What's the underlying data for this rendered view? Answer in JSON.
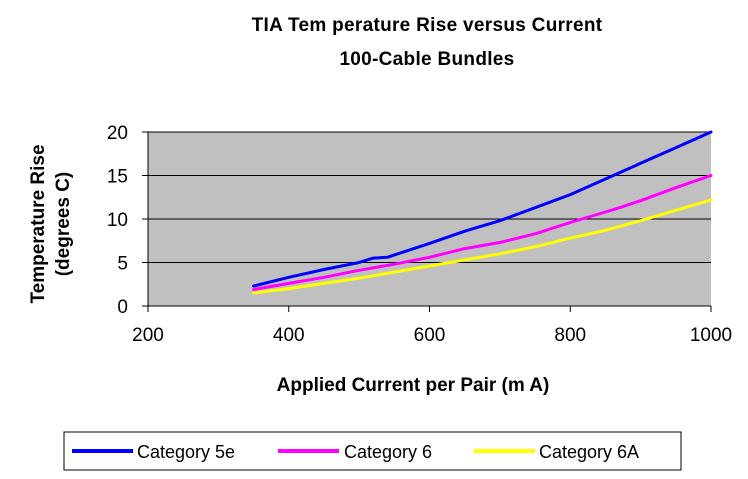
{
  "chart_data": {
    "type": "line",
    "title": "TIA Tem perature Rise versus Current",
    "subtitle": "100-Cable Bundles",
    "xlabel": "Applied Current per Pair (m A)",
    "ylabel_line1": "Temperature Rise",
    "ylabel_line2": "(degrees C)",
    "xlim": [
      200,
      1000
    ],
    "ylim": [
      0,
      20
    ],
    "xticks": [
      200,
      400,
      600,
      800,
      1000
    ],
    "yticks": [
      0,
      5,
      10,
      15,
      20
    ],
    "xtick_labels": [
      "200",
      "400",
      "600",
      "800",
      "1000"
    ],
    "ytick_labels": [
      "0",
      "5",
      "10",
      "15",
      "20"
    ],
    "grid": "horizontal",
    "plot_background": "#c0c0c0",
    "legend_position": "bottom",
    "series": [
      {
        "name": "Category 5e",
        "color": "#0000ff",
        "x": [
          350,
          400,
          450,
          500,
          520,
          540,
          600,
          650,
          700,
          750,
          800,
          850,
          900,
          950,
          1000
        ],
        "y": [
          2.3,
          3.3,
          4.2,
          5.0,
          5.5,
          5.6,
          7.2,
          8.6,
          9.8,
          11.3,
          12.8,
          14.6,
          16.4,
          18.2,
          20.0
        ]
      },
      {
        "name": "Category 6",
        "color": "#ff00ff",
        "x": [
          350,
          400,
          450,
          500,
          550,
          600,
          650,
          700,
          750,
          800,
          850,
          870,
          900,
          950,
          1000
        ],
        "y": [
          1.9,
          2.6,
          3.3,
          4.1,
          4.8,
          5.6,
          6.6,
          7.3,
          8.3,
          9.6,
          10.8,
          11.3,
          12.1,
          13.6,
          15.0
        ]
      },
      {
        "name": "Category 6A",
        "color": "#ffff00",
        "x": [
          350,
          400,
          450,
          500,
          550,
          600,
          650,
          700,
          750,
          800,
          850,
          900,
          950,
          1000
        ],
        "y": [
          1.5,
          2.0,
          2.6,
          3.2,
          3.9,
          4.6,
          5.3,
          6.0,
          6.8,
          7.8,
          8.7,
          9.8,
          11.0,
          12.2
        ]
      }
    ]
  }
}
